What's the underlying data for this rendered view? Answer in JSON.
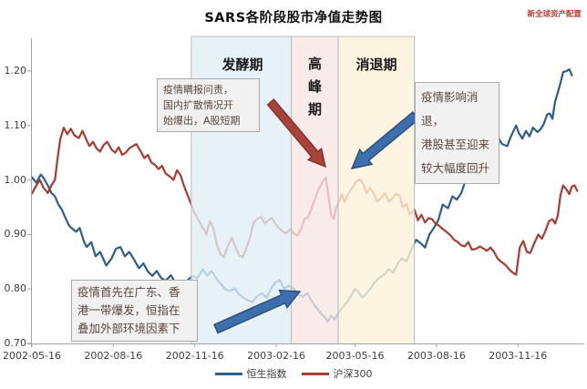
{
  "title": "SARS各阶段股市净值走势图",
  "watermark": "新全球资产配置",
  "annotations": [
    {
      "text": "疫情瞒报问责，\n国内扩散情况开\n始爆出，A股短期",
      "arrow_color": "#a8433a",
      "arrow_outline": "#7e2f27"
    },
    {
      "text": "疫情影响消退，\n港股甚至迎来\n较大幅度回升",
      "arrow_color": "#3d6eae",
      "arrow_outline": "#2c4d74"
    },
    {
      "text": "疫情首先在广东、香\n港一带爆发，恒指在\n叠加外部环境因素下",
      "arrow_color": "#3d6eae",
      "arrow_outline": "#2c4d74"
    }
  ],
  "chart_data": {
    "type": "line",
    "title": "SARS各阶段股市净值走势图",
    "xlabel": "",
    "ylabel": "",
    "x_unit": "days since 2002-05-16",
    "xlim_days": [
      0,
      627
    ],
    "ylim": [
      0.7,
      1.26
    ],
    "grid": false,
    "legend_position": "bottom",
    "y_ticks": [
      0.7,
      0.8,
      0.9,
      1.0,
      1.1,
      1.2
    ],
    "x_ticks": [
      {
        "day": 0,
        "label": "2002-05-16"
      },
      {
        "day": 92,
        "label": "2002-08-16"
      },
      {
        "day": 184,
        "label": "2002-11-16"
      },
      {
        "day": 276,
        "label": "2003-02-16"
      },
      {
        "day": 365,
        "label": "2003-05-16"
      },
      {
        "day": 457,
        "label": "2003-08-16"
      },
      {
        "day": 549,
        "label": "2003-11-16"
      }
    ],
    "phases": [
      {
        "label": "发酵期",
        "from_day": 180,
        "to_day": 293,
        "fill": "rgba(223,238,245,0.78)",
        "border": "#bdbdbd"
      },
      {
        "label": "高峰期",
        "from_day": 293,
        "to_day": 346,
        "fill": "rgba(249,229,229,0.78)",
        "border": "#bdbdbd"
      },
      {
        "label": "消退期",
        "from_day": 346,
        "to_day": 432,
        "fill": "rgba(253,243,218,0.80)",
        "border": "#bdbdbd"
      }
    ],
    "series": [
      {
        "name": "恒生指数",
        "color": "#2e5c8e",
        "points": [
          [
            0,
            1.005
          ],
          [
            5,
            0.995
          ],
          [
            10,
            1.01
          ],
          [
            13,
            1.004
          ],
          [
            18,
            0.99
          ],
          [
            22,
            0.976
          ],
          [
            26,
            0.97
          ],
          [
            30,
            0.955
          ],
          [
            34,
            0.945
          ],
          [
            38,
            0.93
          ],
          [
            42,
            0.916
          ],
          [
            46,
            0.91
          ],
          [
            50,
            0.905
          ],
          [
            54,
            0.912
          ],
          [
            59,
            0.886
          ],
          [
            62,
            0.877
          ],
          [
            67,
            0.886
          ],
          [
            72,
            0.86
          ],
          [
            77,
            0.868
          ],
          [
            84,
            0.843
          ],
          [
            90,
            0.856
          ],
          [
            95,
            0.874
          ],
          [
            100,
            0.877
          ],
          [
            105,
            0.86
          ],
          [
            110,
            0.868
          ],
          [
            115,
            0.855
          ],
          [
            121,
            0.838
          ],
          [
            126,
            0.847
          ],
          [
            131,
            0.832
          ],
          [
            136,
            0.824
          ],
          [
            141,
            0.833
          ],
          [
            146,
            0.82
          ],
          [
            151,
            0.815
          ],
          [
            157,
            0.825
          ],
          [
            162,
            0.812
          ],
          [
            167,
            0.806
          ],
          [
            172,
            0.804
          ],
          [
            177,
            0.818
          ],
          [
            182,
            0.824
          ],
          [
            187,
            0.82
          ],
          [
            193,
            0.836
          ],
          [
            198,
            0.824
          ],
          [
            203,
            0.833
          ],
          [
            208,
            0.82
          ],
          [
            213,
            0.81
          ],
          [
            218,
            0.8
          ],
          [
            224,
            0.796
          ],
          [
            229,
            0.801
          ],
          [
            234,
            0.79
          ],
          [
            239,
            0.784
          ],
          [
            244,
            0.779
          ],
          [
            249,
            0.776
          ],
          [
            254,
            0.786
          ],
          [
            260,
            0.792
          ],
          [
            265,
            0.784
          ],
          [
            270,
            0.8
          ],
          [
            275,
            0.812
          ],
          [
            280,
            0.816
          ],
          [
            285,
            0.8
          ],
          [
            290,
            0.806
          ],
          [
            296,
            0.8
          ],
          [
            301,
            0.79
          ],
          [
            306,
            0.786
          ],
          [
            311,
            0.792
          ],
          [
            316,
            0.778
          ],
          [
            321,
            0.766
          ],
          [
            327,
            0.754
          ],
          [
            331,
            0.748
          ],
          [
            334,
            0.74
          ],
          [
            338,
            0.751
          ],
          [
            342,
            0.744
          ],
          [
            346,
            0.756
          ],
          [
            351,
            0.766
          ],
          [
            356,
            0.776
          ],
          [
            362,
            0.792
          ],
          [
            365,
            0.8
          ],
          [
            369,
            0.794
          ],
          [
            373,
            0.784
          ],
          [
            377,
            0.79
          ],
          [
            382,
            0.8
          ],
          [
            387,
            0.812
          ],
          [
            392,
            0.82
          ],
          [
            398,
            0.826
          ],
          [
            403,
            0.836
          ],
          [
            408,
            0.83
          ],
          [
            413,
            0.846
          ],
          [
            418,
            0.856
          ],
          [
            423,
            0.85
          ],
          [
            428,
            0.87
          ],
          [
            434,
            0.89
          ],
          [
            439,
            0.884
          ],
          [
            444,
            0.876
          ],
          [
            449,
            0.9
          ],
          [
            454,
            0.912
          ],
          [
            459,
            0.926
          ],
          [
            464,
            0.955
          ],
          [
            470,
            0.948
          ],
          [
            475,
            0.97
          ],
          [
            480,
            0.964
          ],
          [
            485,
            0.976
          ],
          [
            490,
            1.0
          ],
          [
            495,
            1.02
          ],
          [
            501,
            1.012
          ],
          [
            506,
            1.032
          ],
          [
            511,
            1.05
          ],
          [
            516,
            1.042
          ],
          [
            521,
            1.06
          ],
          [
            526,
            1.08
          ],
          [
            531,
            1.066
          ],
          [
            537,
            1.062
          ],
          [
            540,
            1.076
          ],
          [
            544,
            1.09
          ],
          [
            547,
            1.1
          ],
          [
            550,
            1.086
          ],
          [
            554,
            1.076
          ],
          [
            558,
            1.09
          ],
          [
            562,
            1.08
          ],
          [
            566,
            1.096
          ],
          [
            571,
            1.088
          ],
          [
            574,
            1.092
          ],
          [
            578,
            1.102
          ],
          [
            582,
            1.12
          ],
          [
            585,
            1.122
          ],
          [
            588,
            1.112
          ],
          [
            591,
            1.144
          ],
          [
            594,
            1.16
          ],
          [
            597,
            1.178
          ],
          [
            600,
            1.198
          ],
          [
            604,
            1.2
          ],
          [
            607,
            1.203
          ],
          [
            610,
            1.192
          ]
        ]
      },
      {
        "name": "沪深300",
        "color": "#a93b32",
        "points": [
          [
            0,
            0.975
          ],
          [
            5,
            0.99
          ],
          [
            9,
            1.0
          ],
          [
            13,
            0.986
          ],
          [
            18,
            0.976
          ],
          [
            22,
            0.99
          ],
          [
            26,
            1.0
          ],
          [
            29,
            1.04
          ],
          [
            32,
            1.075
          ],
          [
            36,
            1.096
          ],
          [
            40,
            1.084
          ],
          [
            44,
            1.094
          ],
          [
            48,
            1.082
          ],
          [
            53,
            1.077
          ],
          [
            57,
            1.09
          ],
          [
            61,
            1.076
          ],
          [
            65,
            1.062
          ],
          [
            69,
            1.07
          ],
          [
            73,
            1.058
          ],
          [
            77,
            1.052
          ],
          [
            81,
            1.064
          ],
          [
            85,
            1.07
          ],
          [
            90,
            1.056
          ],
          [
            94,
            1.05
          ],
          [
            98,
            1.06
          ],
          [
            102,
            1.046
          ],
          [
            106,
            1.05
          ],
          [
            110,
            1.058
          ],
          [
            114,
            1.062
          ],
          [
            118,
            1.066
          ],
          [
            123,
            1.052
          ],
          [
            127,
            1.04
          ],
          [
            131,
            1.046
          ],
          [
            135,
            1.032
          ],
          [
            139,
            1.028
          ],
          [
            143,
            1.02
          ],
          [
            147,
            1.026
          ],
          [
            151,
            1.012
          ],
          [
            156,
            1.006
          ],
          [
            160,
            1.0
          ],
          [
            164,
            1.018
          ],
          [
            168,
            1.008
          ],
          [
            172,
            0.988
          ],
          [
            176,
            0.972
          ],
          [
            180,
            0.955
          ],
          [
            184,
            0.938
          ],
          [
            189,
            0.924
          ],
          [
            193,
            0.912
          ],
          [
            197,
            0.9
          ],
          [
            201,
            0.924
          ],
          [
            205,
            0.912
          ],
          [
            209,
            0.88
          ],
          [
            213,
            0.864
          ],
          [
            217,
            0.858
          ],
          [
            221,
            0.878
          ],
          [
            226,
            0.894
          ],
          [
            230,
            0.876
          ],
          [
            234,
            0.862
          ],
          [
            238,
            0.858
          ],
          [
            242,
            0.874
          ],
          [
            246,
            0.892
          ],
          [
            250,
            0.92
          ],
          [
            254,
            0.928
          ],
          [
            259,
            0.932
          ],
          [
            263,
            0.92
          ],
          [
            267,
            0.926
          ],
          [
            271,
            0.93
          ],
          [
            275,
            0.92
          ],
          [
            279,
            0.912
          ],
          [
            283,
            0.906
          ],
          [
            287,
            0.902
          ],
          [
            292,
            0.91
          ],
          [
            296,
            0.902
          ],
          [
            300,
            0.898
          ],
          [
            304,
            0.91
          ],
          [
            308,
            0.928
          ],
          [
            312,
            0.932
          ],
          [
            316,
            0.948
          ],
          [
            320,
            0.966
          ],
          [
            324,
            0.984
          ],
          [
            329,
            0.998
          ],
          [
            332,
            1.004
          ],
          [
            335,
            0.97
          ],
          [
            338,
            0.936
          ],
          [
            341,
            0.928
          ],
          [
            344,
            0.952
          ],
          [
            347,
            0.96
          ],
          [
            350,
            0.974
          ],
          [
            353,
            0.96
          ],
          [
            357,
            0.974
          ],
          [
            362,
            0.986
          ],
          [
            366,
            0.996
          ],
          [
            370,
            1.001
          ],
          [
            374,
            0.994
          ],
          [
            378,
            0.976
          ],
          [
            382,
            0.986
          ],
          [
            386,
            0.976
          ],
          [
            390,
            0.96
          ],
          [
            394,
            0.966
          ],
          [
            399,
            0.976
          ],
          [
            403,
            0.96
          ],
          [
            407,
            0.966
          ],
          [
            411,
            0.974
          ],
          [
            415,
            0.972
          ],
          [
            419,
            0.95
          ],
          [
            423,
            0.956
          ],
          [
            427,
            0.936
          ],
          [
            432,
            0.946
          ],
          [
            436,
            0.926
          ],
          [
            440,
            0.936
          ],
          [
            444,
            0.922
          ],
          [
            448,
            0.93
          ],
          [
            452,
            0.928
          ],
          [
            456,
            0.92
          ],
          [
            460,
            0.916
          ],
          [
            464,
            0.91
          ],
          [
            469,
            0.904
          ],
          [
            473,
            0.898
          ],
          [
            477,
            0.89
          ],
          [
            481,
            0.886
          ],
          [
            485,
            0.88
          ],
          [
            489,
            0.878
          ],
          [
            493,
            0.886
          ],
          [
            497,
            0.872
          ],
          [
            502,
            0.874
          ],
          [
            506,
            0.878
          ],
          [
            510,
            0.874
          ],
          [
            514,
            0.87
          ],
          [
            518,
            0.876
          ],
          [
            522,
            0.868
          ],
          [
            526,
            0.856
          ],
          [
            530,
            0.85
          ],
          [
            535,
            0.844
          ],
          [
            539,
            0.836
          ],
          [
            543,
            0.83
          ],
          [
            547,
            0.826
          ],
          [
            551,
            0.876
          ],
          [
            555,
            0.888
          ],
          [
            559,
            0.868
          ],
          [
            563,
            0.866
          ],
          [
            568,
            0.886
          ],
          [
            572,
            0.9
          ],
          [
            576,
            0.892
          ],
          [
            580,
            0.906
          ],
          [
            584,
            0.924
          ],
          [
            588,
            0.928
          ],
          [
            591,
            0.92
          ],
          [
            594,
            0.934
          ],
          [
            597,
            0.972
          ],
          [
            600,
            0.99
          ],
          [
            604,
            0.982
          ],
          [
            607,
            0.974
          ],
          [
            610,
            0.988
          ],
          [
            613,
            0.99
          ],
          [
            616,
            0.98
          ]
        ]
      }
    ]
  }
}
